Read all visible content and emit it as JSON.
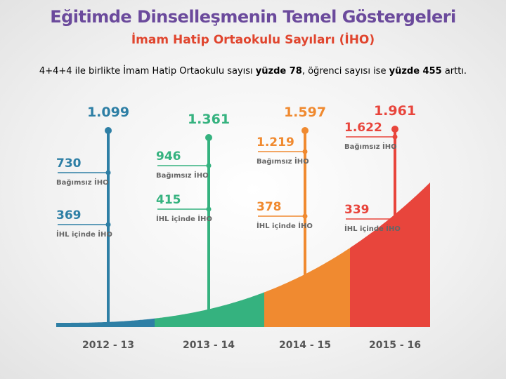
{
  "title": "Eğitimde Dinselleşmenin Temel Göstergeleri",
  "subtitle": "İmam Hatip Ortaokulu Sayıları (İHO)",
  "caption": {
    "part1": "4+4+4 ile birlikte İmam Hatip Ortaokulu sayısı ",
    "bold1": "yüzde 78",
    "part2": ", öğrenci sayısı ise ",
    "bold2": "yüzde 455",
    "part3": " arttı."
  },
  "colors": {
    "title": "#6b4a9c",
    "subtitle": "#e0452e",
    "years": [
      "#2e7fa5",
      "#35b27f",
      "#f08a30",
      "#e8453c"
    ]
  },
  "chart_data": {
    "type": "bar",
    "categories": [
      "2012 - 13",
      "2013 - 14",
      "2014 - 15",
      "2015 - 16"
    ],
    "series": [
      {
        "name": "Bağımsız İHO",
        "values": [
          730,
          946,
          1219,
          1622
        ],
        "labels": [
          "730",
          "946",
          "1.219",
          "1.622"
        ]
      },
      {
        "name": "İHL içinde İHO",
        "values": [
          369,
          415,
          378,
          339
        ],
        "labels": [
          "369",
          "415",
          "378",
          "339"
        ]
      }
    ],
    "totals": [
      1099,
      1361,
      1597,
      1961
    ],
    "total_labels": [
      "1.099",
      "1.361",
      "1.597",
      "1.961"
    ]
  }
}
